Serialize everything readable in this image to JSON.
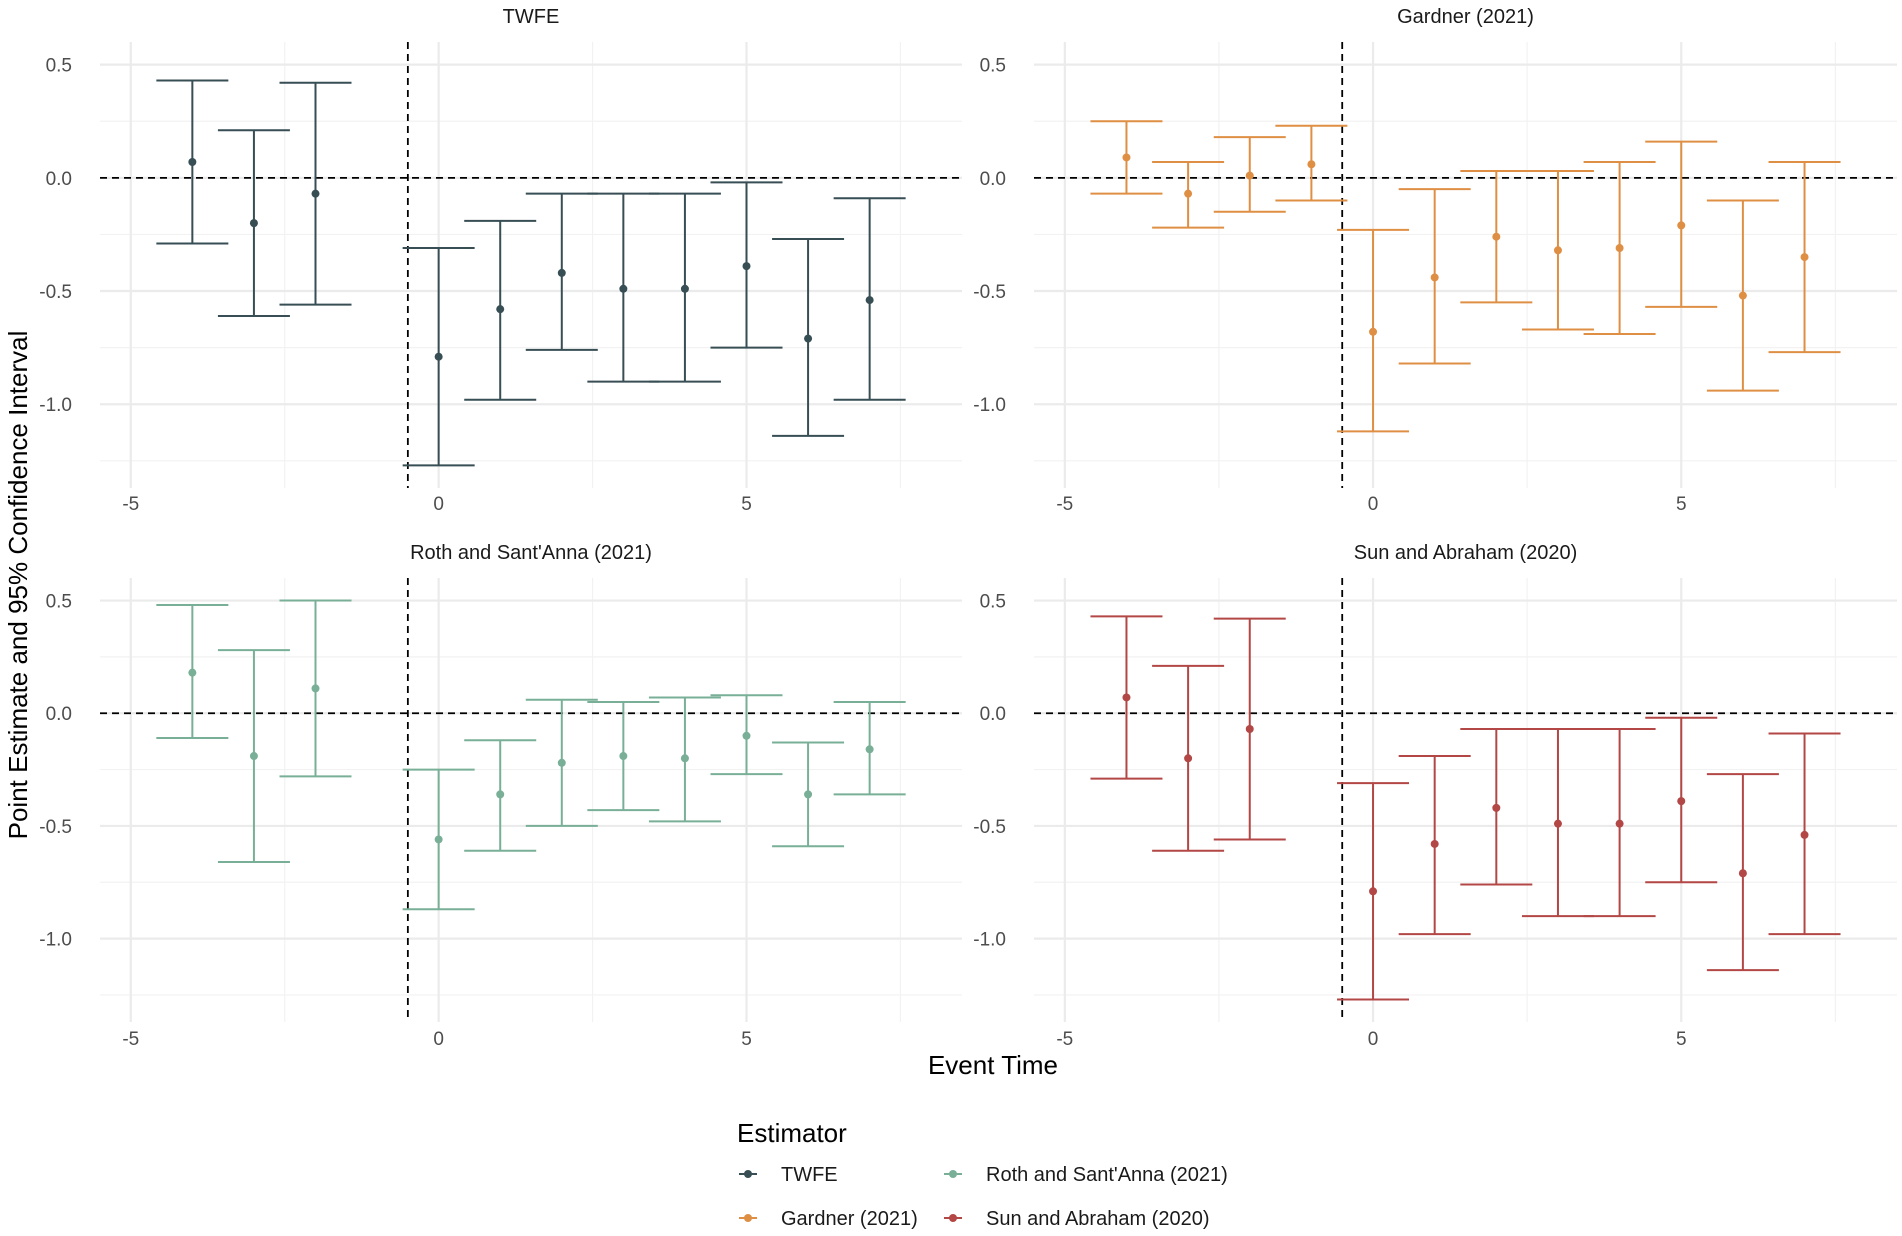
{
  "chart_data": {
    "type": "scatter",
    "subtype": "event-study point estimates with 95% confidence interval error bars, faceted",
    "xlabel": "Event Time",
    "ylabel": "Point Estimate and 95% Confidence Interval",
    "xlim": [
      -5.5,
      8.5
    ],
    "ylim": [
      -1.37,
      0.6
    ],
    "x_ticks": [
      {
        "value": -5,
        "label": "-5"
      },
      {
        "value": 0,
        "label": "0"
      },
      {
        "value": 5,
        "label": "5"
      }
    ],
    "y_ticks": [
      {
        "value": 0.5,
        "label": "0.5"
      },
      {
        "value": 0.0,
        "label": "0.0"
      },
      {
        "value": -0.5,
        "label": "-0.5"
      },
      {
        "value": -1.0,
        "label": "-1.0"
      }
    ],
    "reference_lines": {
      "vertical_x": -0.5,
      "horizontal_y": 0.0
    },
    "legend": {
      "title": "Estimator",
      "position": "bottom",
      "entries": [
        {
          "label": "TWFE",
          "color": "#374e55"
        },
        {
          "label": "Roth and Sant'Anna (2021)",
          "color": "#79af97"
        },
        {
          "label": "Gardner (2021)",
          "color": "#df8f44"
        },
        {
          "label": "Sun and Abraham (2020)",
          "color": "#b24745"
        }
      ]
    },
    "panels": [
      {
        "title": "TWFE",
        "color": "#374e55",
        "points": [
          {
            "x": -4,
            "estimate": 0.07,
            "ci_low": -0.29,
            "ci_high": 0.43
          },
          {
            "x": -3,
            "estimate": -0.2,
            "ci_low": -0.61,
            "ci_high": 0.21
          },
          {
            "x": -2,
            "estimate": -0.07,
            "ci_low": -0.56,
            "ci_high": 0.42
          },
          {
            "x": 0,
            "estimate": -0.79,
            "ci_low": -1.27,
            "ci_high": -0.31
          },
          {
            "x": 1,
            "estimate": -0.58,
            "ci_low": -0.98,
            "ci_high": -0.19
          },
          {
            "x": 2,
            "estimate": -0.42,
            "ci_low": -0.76,
            "ci_high": -0.07
          },
          {
            "x": 3,
            "estimate": -0.49,
            "ci_low": -0.9,
            "ci_high": -0.07
          },
          {
            "x": 4,
            "estimate": -0.49,
            "ci_low": -0.9,
            "ci_high": -0.07
          },
          {
            "x": 5,
            "estimate": -0.39,
            "ci_low": -0.75,
            "ci_high": -0.02
          },
          {
            "x": 6,
            "estimate": -0.71,
            "ci_low": -1.14,
            "ci_high": -0.27
          },
          {
            "x": 7,
            "estimate": -0.54,
            "ci_low": -0.98,
            "ci_high": -0.09
          }
        ]
      },
      {
        "title": "Gardner (2021)",
        "color": "#df8f44",
        "points": [
          {
            "x": -4,
            "estimate": 0.09,
            "ci_low": -0.07,
            "ci_high": 0.25
          },
          {
            "x": -3,
            "estimate": -0.07,
            "ci_low": -0.22,
            "ci_high": 0.07
          },
          {
            "x": -2,
            "estimate": 0.01,
            "ci_low": -0.15,
            "ci_high": 0.18
          },
          {
            "x": -1,
            "estimate": 0.06,
            "ci_low": -0.1,
            "ci_high": 0.23
          },
          {
            "x": 0,
            "estimate": -0.68,
            "ci_low": -1.12,
            "ci_high": -0.23
          },
          {
            "x": 1,
            "estimate": -0.44,
            "ci_low": -0.82,
            "ci_high": -0.05
          },
          {
            "x": 2,
            "estimate": -0.26,
            "ci_low": -0.55,
            "ci_high": 0.03
          },
          {
            "x": 3,
            "estimate": -0.32,
            "ci_low": -0.67,
            "ci_high": 0.03
          },
          {
            "x": 4,
            "estimate": -0.31,
            "ci_low": -0.69,
            "ci_high": 0.07
          },
          {
            "x": 5,
            "estimate": -0.21,
            "ci_low": -0.57,
            "ci_high": 0.16
          },
          {
            "x": 6,
            "estimate": -0.52,
            "ci_low": -0.94,
            "ci_high": -0.1
          },
          {
            "x": 7,
            "estimate": -0.35,
            "ci_low": -0.77,
            "ci_high": 0.07
          }
        ]
      },
      {
        "title": "Roth and Sant'Anna (2021)",
        "color": "#79af97",
        "points": [
          {
            "x": -4,
            "estimate": 0.18,
            "ci_low": -0.11,
            "ci_high": 0.48
          },
          {
            "x": -3,
            "estimate": -0.19,
            "ci_low": -0.66,
            "ci_high": 0.28
          },
          {
            "x": -2,
            "estimate": 0.11,
            "ci_low": -0.28,
            "ci_high": 0.5
          },
          {
            "x": 0,
            "estimate": -0.56,
            "ci_low": -0.87,
            "ci_high": -0.25
          },
          {
            "x": 1,
            "estimate": -0.36,
            "ci_low": -0.61,
            "ci_high": -0.12
          },
          {
            "x": 2,
            "estimate": -0.22,
            "ci_low": -0.5,
            "ci_high": 0.06
          },
          {
            "x": 3,
            "estimate": -0.19,
            "ci_low": -0.43,
            "ci_high": 0.05
          },
          {
            "x": 4,
            "estimate": -0.2,
            "ci_low": -0.48,
            "ci_high": 0.07
          },
          {
            "x": 5,
            "estimate": -0.1,
            "ci_low": -0.27,
            "ci_high": 0.08
          },
          {
            "x": 6,
            "estimate": -0.36,
            "ci_low": -0.59,
            "ci_high": -0.13
          },
          {
            "x": 7,
            "estimate": -0.16,
            "ci_low": -0.36,
            "ci_high": 0.05
          }
        ]
      },
      {
        "title": "Sun and Abraham (2020)",
        "color": "#b24745",
        "points": [
          {
            "x": -4,
            "estimate": 0.07,
            "ci_low": -0.29,
            "ci_high": 0.43
          },
          {
            "x": -3,
            "estimate": -0.2,
            "ci_low": -0.61,
            "ci_high": 0.21
          },
          {
            "x": -2,
            "estimate": -0.07,
            "ci_low": -0.56,
            "ci_high": 0.42
          },
          {
            "x": 0,
            "estimate": -0.79,
            "ci_low": -1.27,
            "ci_high": -0.31
          },
          {
            "x": 1,
            "estimate": -0.58,
            "ci_low": -0.98,
            "ci_high": -0.19
          },
          {
            "x": 2,
            "estimate": -0.42,
            "ci_low": -0.76,
            "ci_high": -0.07
          },
          {
            "x": 3,
            "estimate": -0.49,
            "ci_low": -0.9,
            "ci_high": -0.07
          },
          {
            "x": 4,
            "estimate": -0.49,
            "ci_low": -0.9,
            "ci_high": -0.07
          },
          {
            "x": 5,
            "estimate": -0.39,
            "ci_low": -0.75,
            "ci_high": -0.02
          },
          {
            "x": 6,
            "estimate": -0.71,
            "ci_low": -1.14,
            "ci_high": -0.27
          },
          {
            "x": 7,
            "estimate": -0.54,
            "ci_low": -0.98,
            "ci_high": -0.09
          }
        ]
      }
    ]
  }
}
